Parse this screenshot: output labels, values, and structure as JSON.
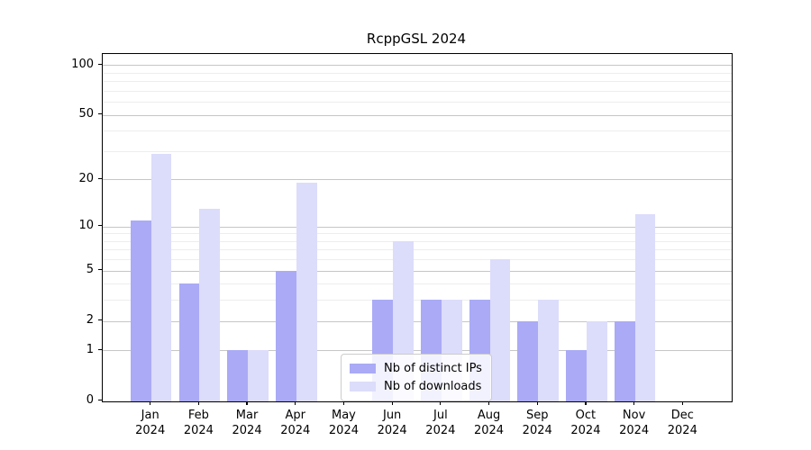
{
  "chart_data": {
    "type": "bar",
    "title": "RcppGSL 2024",
    "months": [
      "Jan",
      "Feb",
      "Mar",
      "Apr",
      "May",
      "Jun",
      "Jul",
      "Aug",
      "Sep",
      "Oct",
      "Nov",
      "Dec"
    ],
    "year_label": "2024",
    "categories": [
      "Jan 2024",
      "Feb 2024",
      "Mar 2024",
      "Apr 2024",
      "May 2024",
      "Jun 2024",
      "Jul 2024",
      "Aug 2024",
      "Sep 2024",
      "Oct 2024",
      "Nov 2024",
      "Dec 2024"
    ],
    "series": [
      {
        "name": "Nb of distinct IPs",
        "color": "#aaaaf6",
        "values": [
          11,
          4,
          1,
          5,
          0,
          3,
          3,
          3,
          2,
          1,
          2,
          0
        ]
      },
      {
        "name": "Nb of downloads",
        "color": "#dcdcfb",
        "values": [
          29,
          13,
          1,
          19,
          0,
          8,
          3,
          6,
          3,
          2,
          12,
          0
        ]
      }
    ],
    "y_scale": "log1p",
    "y_ticks": [
      100,
      50,
      20,
      10,
      5,
      2,
      1,
      0
    ],
    "y_minor_gridlines": [
      3,
      4,
      6,
      7,
      8,
      9,
      30,
      40,
      60,
      70,
      80,
      90
    ],
    "y_max_effective": 116.7,
    "legend": {
      "position": "lower center"
    },
    "grid": {
      "major_color": "#c6c6c6",
      "minor_color": "#ededed"
    }
  }
}
